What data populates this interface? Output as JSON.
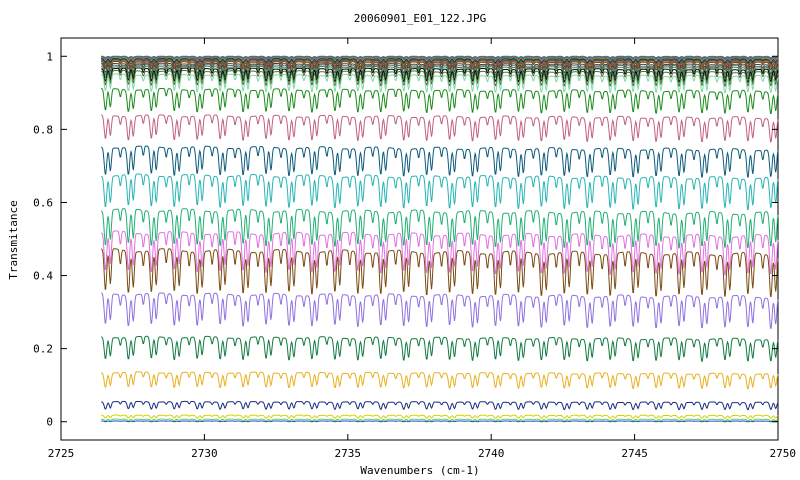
{
  "chart_data": {
    "type": "line",
    "title": "20060901_E01_122.JPG",
    "xlabel": "Wavenumbers (cm-1)",
    "ylabel": "Transmitance",
    "xlim": [
      2725,
      2750
    ],
    "ylim": [
      -0.05,
      1.05
    ],
    "x_ticks": [
      "2725",
      "2730",
      "2735",
      "2740",
      "2745",
      "2750"
    ],
    "y_ticks": [
      "0",
      "0.2",
      "0.4",
      "0.6",
      "0.8",
      "1"
    ],
    "x_range": [
      2726.4,
      2750
    ],
    "line_spacing_cm1": 0.8,
    "grid": false,
    "legend": "none",
    "series": [
      {
        "color": "#1f77d4",
        "baseline": 1.0,
        "dip": 0.003
      },
      {
        "color": "#2ca02c",
        "baseline": 0.999,
        "dip": 0.004
      },
      {
        "color": "#d62728",
        "baseline": 0.998,
        "dip": 0.005
      },
      {
        "color": "#00a0a0",
        "baseline": 0.997,
        "dip": 0.006
      },
      {
        "color": "#a040c0",
        "baseline": 0.996,
        "dip": 0.007
      },
      {
        "color": "#d4a017",
        "baseline": 0.995,
        "dip": 0.008
      },
      {
        "color": "#808080",
        "baseline": 0.994,
        "dip": 0.009
      },
      {
        "color": "#000080",
        "baseline": 0.993,
        "dip": 0.01
      },
      {
        "color": "#008000",
        "baseline": 0.992,
        "dip": 0.012
      },
      {
        "color": "#c04040",
        "baseline": 0.99,
        "dip": 0.014
      },
      {
        "color": "#4040c0",
        "baseline": 0.989,
        "dip": 0.016
      },
      {
        "color": "#c08000",
        "baseline": 0.987,
        "dip": 0.018
      },
      {
        "color": "#6a4a1a",
        "baseline": 0.985,
        "dip": 0.02
      },
      {
        "color": "#404040",
        "baseline": 0.98,
        "dip": 0.025
      },
      {
        "color": "#707070",
        "baseline": 0.976,
        "dip": 0.028
      },
      {
        "color": "#2e8b57",
        "baseline": 0.972,
        "dip": 0.03
      },
      {
        "color": "#000000",
        "baseline": 0.967,
        "dip": 0.034
      },
      {
        "color": "#556b2f",
        "baseline": 0.96,
        "dip": 0.038
      },
      {
        "color": "#7fd8a8",
        "baseline": 0.95,
        "dip": 0.045
      },
      {
        "color": "#1a8a1a",
        "baseline": 0.91,
        "dip": 0.06
      },
      {
        "color": "#c06080",
        "baseline": 0.838,
        "dip": 0.065
      },
      {
        "color": "#0b5a7a",
        "baseline": 0.752,
        "dip": 0.075
      },
      {
        "color": "#28b4b4",
        "baseline": 0.675,
        "dip": 0.085
      },
      {
        "color": "#20b070",
        "baseline": 0.58,
        "dip": 0.095
      },
      {
        "color": "#e070e0",
        "baseline": 0.518,
        "dip": 0.105
      },
      {
        "color": "#7a4a10",
        "baseline": 0.47,
        "dip": 0.115
      },
      {
        "color": "#9070e0",
        "baseline": 0.35,
        "dip": 0.085
      },
      {
        "color": "#107a40",
        "baseline": 0.232,
        "dip": 0.06
      },
      {
        "color": "#e8b020",
        "baseline": 0.135,
        "dip": 0.04
      },
      {
        "color": "#1a2a80",
        "baseline": 0.055,
        "dip": 0.02
      },
      {
        "color": "#d4d000",
        "baseline": 0.018,
        "dip": 0.008
      },
      {
        "color": "#60d060",
        "baseline": 0.007,
        "dip": 0.004
      },
      {
        "color": "#2050c0",
        "baseline": 0.002,
        "dip": 0.002
      }
    ]
  }
}
